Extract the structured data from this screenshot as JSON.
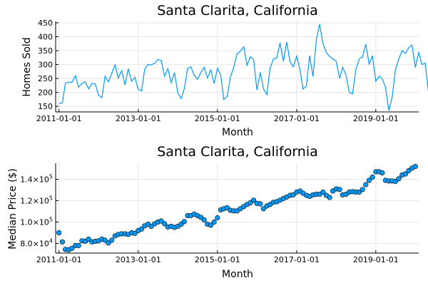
{
  "chart_data": [
    {
      "type": "line",
      "title": "Santa Clarita, California",
      "xlabel": "Month",
      "ylabel": "Homes Sold",
      "color": "#009AF9",
      "legend": "none",
      "grid": true,
      "xlim": [
        "2010-12-01",
        "2020-02-01"
      ],
      "ylim": [
        130,
        455
      ],
      "x_ticks": [
        "2011-01-01",
        "2013-01-01",
        "2015-01-01",
        "2017-01-01",
        "2019-01-01"
      ],
      "y_ticks": [
        {
          "value": 150,
          "label": "150"
        },
        {
          "value": 200,
          "label": "200"
        },
        {
          "value": 250,
          "label": "250"
        },
        {
          "value": 300,
          "label": "300"
        },
        {
          "value": 350,
          "label": "350"
        },
        {
          "value": 400,
          "label": "400"
        },
        {
          "value": 450,
          "label": "450"
        }
      ],
      "series": [
        {
          "x_start": "2011-01-01",
          "frequency": "monthly",
          "values": [
            160,
            163,
            233,
            237,
            236,
            260,
            219,
            232,
            238,
            213,
            232,
            231,
            190,
            181,
            258,
            238,
            268,
            299,
            251,
            278,
            227,
            285,
            240,
            254,
            212,
            205,
            283,
            300,
            299,
            305,
            318,
            315,
            258,
            285,
            235,
            271,
            198,
            178,
            213,
            286,
            292,
            262,
            247,
            271,
            290,
            252,
            281,
            232,
            286,
            262,
            174,
            185,
            255,
            290,
            338,
            348,
            364,
            298,
            328,
            318,
            209,
            272,
            213,
            192,
            286,
            320,
            323,
            378,
            312,
            381,
            310,
            292,
            330,
            280,
            212,
            222,
            332,
            257,
            388,
            445,
            375,
            343,
            329,
            320,
            312,
            250,
            290,
            263,
            200,
            195,
            282,
            320,
            328,
            373,
            302,
            332,
            240,
            258,
            250,
            217,
            135,
            183,
            280,
            320,
            350,
            340,
            360,
            370,
            290,
            345,
            300,
            305,
            197
          ]
        }
      ]
    },
    {
      "type": "scatter",
      "title": "Santa Clarita, California",
      "xlabel": "Month",
      "ylabel": "Median Price ($)",
      "color": "#009AF9",
      "legend": "none",
      "grid": true,
      "xlim": [
        "2010-12-01",
        "2020-02-01"
      ],
      "ylim": [
        71000,
        155000
      ],
      "x_ticks": [
        "2011-01-01",
        "2013-01-01",
        "2015-01-01",
        "2017-01-01",
        "2019-01-01"
      ],
      "y_ticks": [
        {
          "value": 80000,
          "base": "8.0×10",
          "exp": "4"
        },
        {
          "value": 100000,
          "base": "1.0×10",
          "exp": "5"
        },
        {
          "value": 120000,
          "base": "1.2×10",
          "exp": "5"
        },
        {
          "value": 140000,
          "base": "1.4×10",
          "exp": "5"
        }
      ],
      "series": [
        {
          "x_start": "2011-01-01",
          "frequency": "monthly",
          "values": [
            90000,
            81500,
            74500,
            74000,
            75500,
            78000,
            78000,
            82500,
            82000,
            84000,
            81500,
            82000,
            82500,
            84000,
            83000,
            80500,
            83000,
            87000,
            88500,
            89000,
            89000,
            88500,
            90000,
            89500,
            92000,
            93500,
            96500,
            98000,
            96000,
            98500,
            100000,
            101000,
            98500,
            95500,
            96000,
            95000,
            96000,
            98000,
            100500,
            106000,
            106000,
            107500,
            106000,
            104500,
            102000,
            98000,
            97000,
            100000,
            104000,
            111500,
            112500,
            113500,
            111000,
            110500,
            110500,
            112500,
            114500,
            116500,
            118000,
            120500,
            117500,
            117000,
            112500,
            115000,
            116500,
            118500,
            119000,
            120500,
            122000,
            123500,
            125000,
            125500,
            128000,
            129000,
            127000,
            125000,
            124000,
            125500,
            126000,
            126000,
            128000,
            125000,
            123000,
            129000,
            131000,
            130500,
            125500,
            126000,
            128000,
            128500,
            128000,
            128000,
            130500,
            135000,
            139000,
            142000,
            147000,
            147000,
            146000,
            139000,
            138500,
            138500,
            138000,
            140500,
            144000,
            145000,
            148000,
            150500,
            152000
          ]
        }
      ]
    }
  ]
}
